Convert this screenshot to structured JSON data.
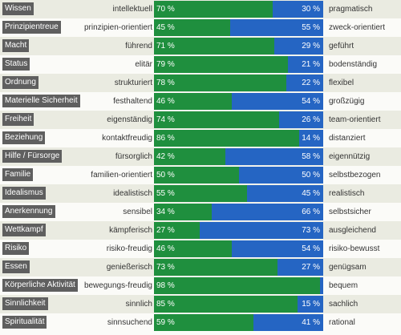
{
  "chart_data": {
    "type": "bar",
    "colors": {
      "left": "#1f8f3e",
      "right": "#2565c3",
      "label_bg": "#5f5f5f"
    },
    "rows": [
      {
        "category": "Wissen",
        "left_label": "intellektuell",
        "left_value": 70,
        "left_text": "70 %",
        "right_value": 30,
        "right_text": "30 %",
        "right_label": "pragmatisch"
      },
      {
        "category": "Prinzipientreue",
        "left_label": "prinzipien-orientiert",
        "left_value": 45,
        "left_text": "45 %",
        "right_value": 55,
        "right_text": "55 %",
        "right_label": "zweck-orientiert"
      },
      {
        "category": "Macht",
        "left_label": "führend",
        "left_value": 71,
        "left_text": "71 %",
        "right_value": 29,
        "right_text": "29 %",
        "right_label": "geführt"
      },
      {
        "category": "Status",
        "left_label": "elitär",
        "left_value": 79,
        "left_text": "79 %",
        "right_value": 21,
        "right_text": "21 %",
        "right_label": "bodenständig"
      },
      {
        "category": "Ordnung",
        "left_label": "strukturiert",
        "left_value": 78,
        "left_text": "78 %",
        "right_value": 22,
        "right_text": "22 %",
        "right_label": "flexibel"
      },
      {
        "category": "Materielle Sicherheit",
        "left_label": "festhaltend",
        "left_value": 46,
        "left_text": "46 %",
        "right_value": 54,
        "right_text": "54 %",
        "right_label": "großzügig"
      },
      {
        "category": "Freiheit",
        "left_label": "eigenständig",
        "left_value": 74,
        "left_text": "74 %",
        "right_value": 26,
        "right_text": "26 %",
        "right_label": "team-orientiert"
      },
      {
        "category": "Beziehung",
        "left_label": "kontaktfreudig",
        "left_value": 86,
        "left_text": "86 %",
        "right_value": 14,
        "right_text": "14 %",
        "right_label": "distanziert"
      },
      {
        "category": "Hilfe / Fürsorge",
        "left_label": "fürsorglich",
        "left_value": 42,
        "left_text": "42 %",
        "right_value": 58,
        "right_text": "58 %",
        "right_label": "eigennützig"
      },
      {
        "category": "Familie",
        "left_label": "familien-orientiert",
        "left_value": 50,
        "left_text": "50 %",
        "right_value": 50,
        "right_text": "50 %",
        "right_label": "selbstbezogen"
      },
      {
        "category": "Idealismus",
        "left_label": "idealistisch",
        "left_value": 55,
        "left_text": "55 %",
        "right_value": 45,
        "right_text": "45 %",
        "right_label": "realistisch"
      },
      {
        "category": "Anerkennung",
        "left_label": "sensibel",
        "left_value": 34,
        "left_text": "34 %",
        "right_value": 66,
        "right_text": "66 %",
        "right_label": "selbstsicher"
      },
      {
        "category": "Wettkampf",
        "left_label": "kämpferisch",
        "left_value": 27,
        "left_text": "27 %",
        "right_value": 73,
        "right_text": "73 %",
        "right_label": "ausgleichend"
      },
      {
        "category": "Risiko",
        "left_label": "risiko-freudig",
        "left_value": 46,
        "left_text": "46 %",
        "right_value": 54,
        "right_text": "54 %",
        "right_label": "risiko-bewusst"
      },
      {
        "category": "Essen",
        "left_label": "genießerisch",
        "left_value": 73,
        "left_text": "73 %",
        "right_value": 27,
        "right_text": "27 %",
        "right_label": "genügsam"
      },
      {
        "category": "Körperliche Aktivität",
        "left_label": "bewegungs-freudig",
        "left_value": 98,
        "left_text": "98 %",
        "right_value": 2,
        "right_text": "",
        "right_label": "bequem"
      },
      {
        "category": "Sinnlichkeit",
        "left_label": "sinnlich",
        "left_value": 85,
        "left_text": "85 %",
        "right_value": 15,
        "right_text": "15 %",
        "right_label": "sachlich"
      },
      {
        "category": "Spiritualität",
        "left_label": "sinnsuchend",
        "left_value": 59,
        "left_text": "59 %",
        "right_value": 41,
        "right_text": "41 %",
        "right_label": "rational"
      }
    ]
  }
}
